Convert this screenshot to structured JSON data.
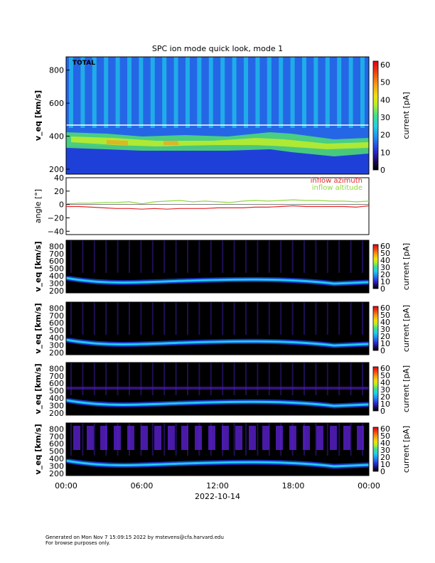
{
  "title": "SPC ion mode quick look, mode 1",
  "date_label": "2022-10-14",
  "time_ticks": [
    "00:00",
    "06:00",
    "12:00",
    "18:00",
    "00:00"
  ],
  "total_label": "TOTAL",
  "footer": {
    "line1": "Generated on Mon Nov  7 15:09:15 2022 by mstevens@cfa.harvard.edu",
    "line2": "For browse purposes only."
  },
  "colors": {
    "azimuth": "#e8262a",
    "altitude": "#8fd83c",
    "bg_dark": "#000000"
  },
  "chart_data": [
    {
      "type": "heatmap",
      "name_label": "TOTAL",
      "ylabel": "v_eq [km/s]",
      "ylim": [
        170,
        880
      ],
      "yticks": [
        "200",
        "400",
        "600",
        "800"
      ],
      "colorbar": {
        "label": "current [pA]",
        "range": [
          0,
          62
        ],
        "ticks": [
          "0",
          "10",
          "20",
          "30",
          "40",
          "50",
          "60"
        ]
      },
      "x_range_hours": [
        0,
        24
      ],
      "description_values": {
        "core_velocity_kms": 350
      }
    },
    {
      "type": "line",
      "ylabel": "angle [°]",
      "ylim": [
        -45,
        40
      ],
      "yticks": [
        "40",
        "20",
        "0",
        "−20",
        "−40"
      ],
      "series": [
        {
          "name": "inflow azimuth",
          "color": "#e8262a",
          "x": [
            0,
            1,
            2,
            3,
            4,
            5,
            6,
            7,
            8,
            9,
            10,
            11,
            12,
            13,
            14,
            15,
            16,
            17,
            18,
            19,
            20,
            21,
            22,
            23,
            24
          ],
          "y": [
            -3,
            -3,
            -4,
            -5,
            -6,
            -6,
            -7,
            -6,
            -7,
            -6,
            -6,
            -6,
            -5,
            -5,
            -5,
            -4,
            -4,
            -3,
            -2,
            -3,
            -3,
            -3,
            -3,
            -4,
            -2
          ]
        },
        {
          "name": "inflow altitude",
          "color": "#8fd83c",
          "x": [
            0,
            1,
            2,
            3,
            4,
            5,
            6,
            7,
            8,
            9,
            10,
            11,
            12,
            13,
            14,
            15,
            16,
            17,
            18,
            19,
            20,
            21,
            22,
            23,
            24
          ],
          "y": [
            1,
            2,
            2,
            3,
            3,
            4,
            1,
            4,
            5,
            6,
            4,
            5,
            4,
            3,
            5,
            6,
            5,
            6,
            7,
            6,
            6,
            5,
            5,
            4,
            5
          ]
        }
      ]
    },
    {
      "type": "heatmap",
      "ylabel": "v_eq [km/s]",
      "ylim": [
        170,
        880
      ],
      "yticks": [
        "200",
        "300",
        "400",
        "500",
        "600",
        "700",
        "800"
      ],
      "colorbar": {
        "label": "current [pA]",
        "range": [
          0,
          62
        ],
        "ticks": [
          "0",
          "10",
          "20",
          "30",
          "40",
          "50",
          "60"
        ]
      },
      "description_values": {
        "core_velocity_kms": 350
      }
    },
    {
      "type": "heatmap",
      "ylabel": "v_eq [km/s]",
      "ylim": [
        170,
        880
      ],
      "yticks": [
        "200",
        "300",
        "400",
        "500",
        "600",
        "700",
        "800"
      ],
      "colorbar": {
        "label": "current [pA]",
        "range": [
          0,
          62
        ],
        "ticks": [
          "0",
          "10",
          "20",
          "30",
          "40",
          "50",
          "60"
        ]
      },
      "description_values": {
        "core_velocity_kms": 350
      }
    },
    {
      "type": "heatmap",
      "ylabel": "v_eq [km/s]",
      "ylim": [
        170,
        880
      ],
      "yticks": [
        "200",
        "300",
        "400",
        "500",
        "600",
        "700",
        "800"
      ],
      "colorbar": {
        "label": "current [pA]",
        "range": [
          0,
          62
        ],
        "ticks": [
          "0",
          "10",
          "20",
          "30",
          "40",
          "50",
          "60"
        ]
      },
      "description_values": {
        "core_velocity_kms": 350
      }
    },
    {
      "type": "heatmap",
      "ylabel": "v_eq [km/s]",
      "ylim": [
        170,
        880
      ],
      "yticks": [
        "200",
        "300",
        "400",
        "500",
        "600",
        "700",
        "800"
      ],
      "colorbar": {
        "label": "current [pA]",
        "range": [
          0,
          62
        ],
        "ticks": [
          "0",
          "10",
          "20",
          "30",
          "40",
          "50",
          "60"
        ]
      },
      "description_values": {
        "core_velocity_kms": 350
      }
    }
  ]
}
